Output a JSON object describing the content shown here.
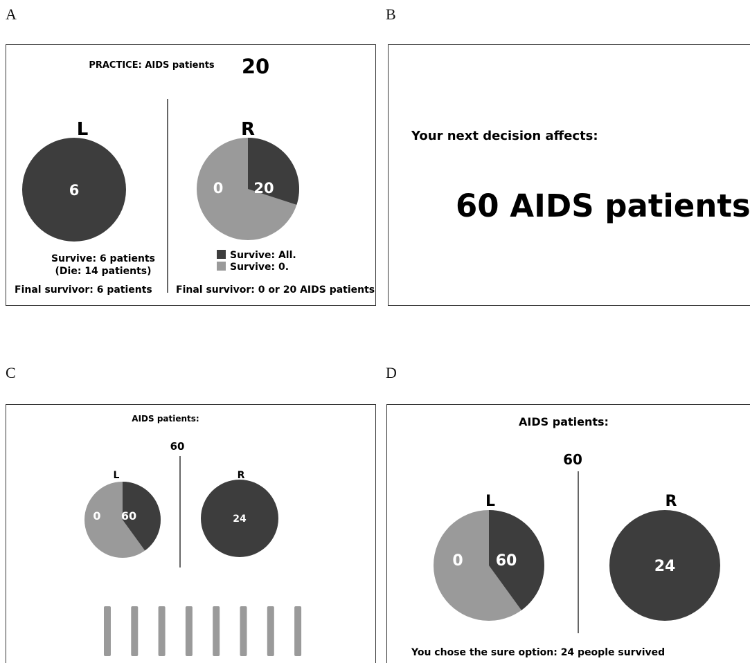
{
  "colors": {
    "dark": "#3d3d3d",
    "light": "#9a9a9a",
    "text": "#111111"
  },
  "panel_labels": {
    "a": "A",
    "b": "B",
    "c": "C",
    "d": "D"
  },
  "panel_a": {
    "title": "PRACTICE: AIDS patients",
    "count": "20",
    "left": {
      "letter": "L",
      "pie_value": "6",
      "survive": "Survive: 6 patients",
      "die": "(Die: 14 patients)",
      "final": "Final survivor: 6 patients"
    },
    "right": {
      "letter": "R",
      "dark_value": "20",
      "light_value": "0",
      "dark_fraction": 0.3,
      "legend_dark": "Survive: All.",
      "legend_light": "Survive: 0.",
      "final": "Final survivor: 0 or 20 AIDS patients."
    }
  },
  "panel_b": {
    "prompt": "Your next decision affects:",
    "headline": "60 AIDS patients"
  },
  "panel_c": {
    "title": "AIDS patients:",
    "count": "60",
    "left": {
      "letter": "L",
      "dark_value": "60",
      "light_value": "0",
      "dark_fraction": 0.4
    },
    "right": {
      "letter": "R",
      "pie_value": "24"
    },
    "bar_count": 8
  },
  "panel_d": {
    "title": "AIDS patients:",
    "count": "60",
    "left": {
      "letter": "L",
      "dark_value": "60",
      "light_value": "0",
      "dark_fraction": 0.4
    },
    "right": {
      "letter": "R",
      "pie_value": "24"
    },
    "result": "You chose the sure option: 24 people survived"
  }
}
